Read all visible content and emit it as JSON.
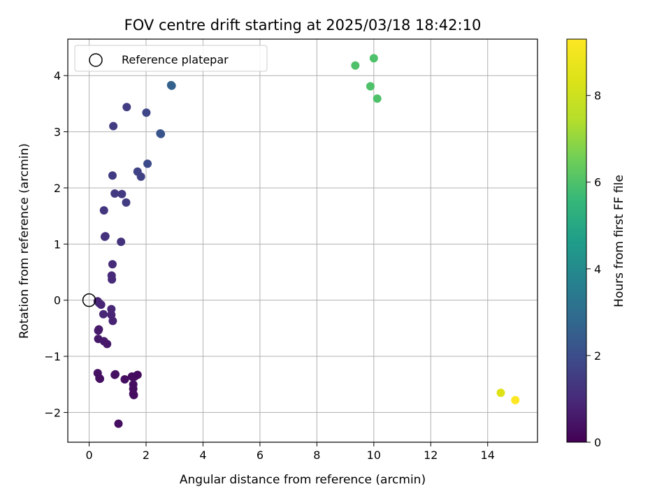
{
  "chart_data": {
    "type": "scatter",
    "title": "FOV centre drift starting at 2025/03/18 18:42:10",
    "xlabel": "Angular distance from reference (arcmin)",
    "ylabel": "Rotation from reference (arcmin)",
    "xlim": [
      -0.75,
      15.75
    ],
    "ylim": [
      -2.53,
      4.65
    ],
    "xticks": [
      0,
      2,
      4,
      6,
      8,
      10,
      12,
      14
    ],
    "yticks": [
      -2,
      -1,
      0,
      1,
      2,
      3,
      4
    ],
    "ytick_labels": [
      "−2",
      "−1",
      "0",
      "1",
      "2",
      "3",
      "4"
    ],
    "grid": true,
    "legend": {
      "placement": "top-left",
      "entries": [
        "Reference platepar"
      ]
    },
    "reference_point": {
      "x": 0,
      "y": 0,
      "label": "Reference platepar",
      "marker": "open-circle"
    },
    "colorbar": {
      "label": "Hours from first FF file",
      "colormap": "viridis",
      "range": [
        0,
        9.3
      ],
      "ticks": [
        0,
        2,
        4,
        6,
        8
      ]
    },
    "points": [
      {
        "x": 0.3,
        "y": -0.02,
        "c": 0.8
      },
      {
        "x": 0.35,
        "y": -0.05,
        "c": 0.9
      },
      {
        "x": 0.42,
        "y": -0.08,
        "c": 0.85
      },
      {
        "x": 0.78,
        "y": -0.16,
        "c": 0.9
      },
      {
        "x": 0.5,
        "y": -0.25,
        "c": 0.95
      },
      {
        "x": 0.78,
        "y": -0.26,
        "c": 0.85
      },
      {
        "x": 0.83,
        "y": -0.37,
        "c": 0.8
      },
      {
        "x": 0.34,
        "y": -0.52,
        "c": 0.6
      },
      {
        "x": 0.32,
        "y": -0.54,
        "c": 0.6
      },
      {
        "x": 0.32,
        "y": -0.69,
        "c": 0.55
      },
      {
        "x": 0.52,
        "y": -0.73,
        "c": 0.6
      },
      {
        "x": 0.63,
        "y": -0.78,
        "c": 0.55
      },
      {
        "x": 0.3,
        "y": -1.3,
        "c": 0.4
      },
      {
        "x": 0.38,
        "y": -1.4,
        "c": 0.35
      },
      {
        "x": 0.36,
        "y": -1.39,
        "c": 0.35
      },
      {
        "x": 0.92,
        "y": -1.32,
        "c": 0.35
      },
      {
        "x": 0.9,
        "y": -1.33,
        "c": 0.35
      },
      {
        "x": 1.25,
        "y": -1.41,
        "c": 0.3
      },
      {
        "x": 1.5,
        "y": -1.36,
        "c": 0.3
      },
      {
        "x": 1.6,
        "y": -1.36,
        "c": 0.3
      },
      {
        "x": 1.7,
        "y": -1.33,
        "c": 0.25
      },
      {
        "x": 1.55,
        "y": -1.5,
        "c": 0.3
      },
      {
        "x": 1.55,
        "y": -1.58,
        "c": 0.3
      },
      {
        "x": 1.55,
        "y": -1.67,
        "c": 0.3
      },
      {
        "x": 1.57,
        "y": -1.69,
        "c": 0.3
      },
      {
        "x": 1.03,
        "y": -2.2,
        "c": 0.3
      },
      {
        "x": 0.8,
        "y": 0.37,
        "c": 1.0
      },
      {
        "x": 0.79,
        "y": 0.44,
        "c": 1.0
      },
      {
        "x": 0.82,
        "y": 0.64,
        "c": 1.05
      },
      {
        "x": 1.12,
        "y": 1.04,
        "c": 1.2
      },
      {
        "x": 0.55,
        "y": 1.13,
        "c": 1.2
      },
      {
        "x": 0.57,
        "y": 1.14,
        "c": 1.2
      },
      {
        "x": 0.52,
        "y": 1.6,
        "c": 1.3
      },
      {
        "x": 0.9,
        "y": 1.9,
        "c": 1.4
      },
      {
        "x": 1.15,
        "y": 1.89,
        "c": 1.4
      },
      {
        "x": 1.3,
        "y": 1.74,
        "c": 1.5
      },
      {
        "x": 0.82,
        "y": 2.22,
        "c": 1.45
      },
      {
        "x": 1.7,
        "y": 2.29,
        "c": 1.7
      },
      {
        "x": 1.82,
        "y": 2.2,
        "c": 1.65
      },
      {
        "x": 2.05,
        "y": 2.43,
        "c": 1.9
      },
      {
        "x": 0.85,
        "y": 3.1,
        "c": 1.5
      },
      {
        "x": 1.32,
        "y": 3.44,
        "c": 1.5
      },
      {
        "x": 2.01,
        "y": 3.34,
        "c": 1.8
      },
      {
        "x": 2.5,
        "y": 2.97,
        "c": 2.2
      },
      {
        "x": 2.52,
        "y": 2.96,
        "c": 2.2
      },
      {
        "x": 2.88,
        "y": 3.83,
        "c": 2.6
      },
      {
        "x": 2.9,
        "y": 3.82,
        "c": 2.6
      },
      {
        "x": 9.35,
        "y": 4.18,
        "c": 6.0
      },
      {
        "x": 10.0,
        "y": 4.31,
        "c": 6.0
      },
      {
        "x": 9.88,
        "y": 3.81,
        "c": 6.0
      },
      {
        "x": 10.12,
        "y": 3.59,
        "c": 6.0
      },
      {
        "x": 14.46,
        "y": -1.65,
        "c": 8.4
      },
      {
        "x": 14.97,
        "y": -1.78,
        "c": 9.3
      }
    ]
  }
}
